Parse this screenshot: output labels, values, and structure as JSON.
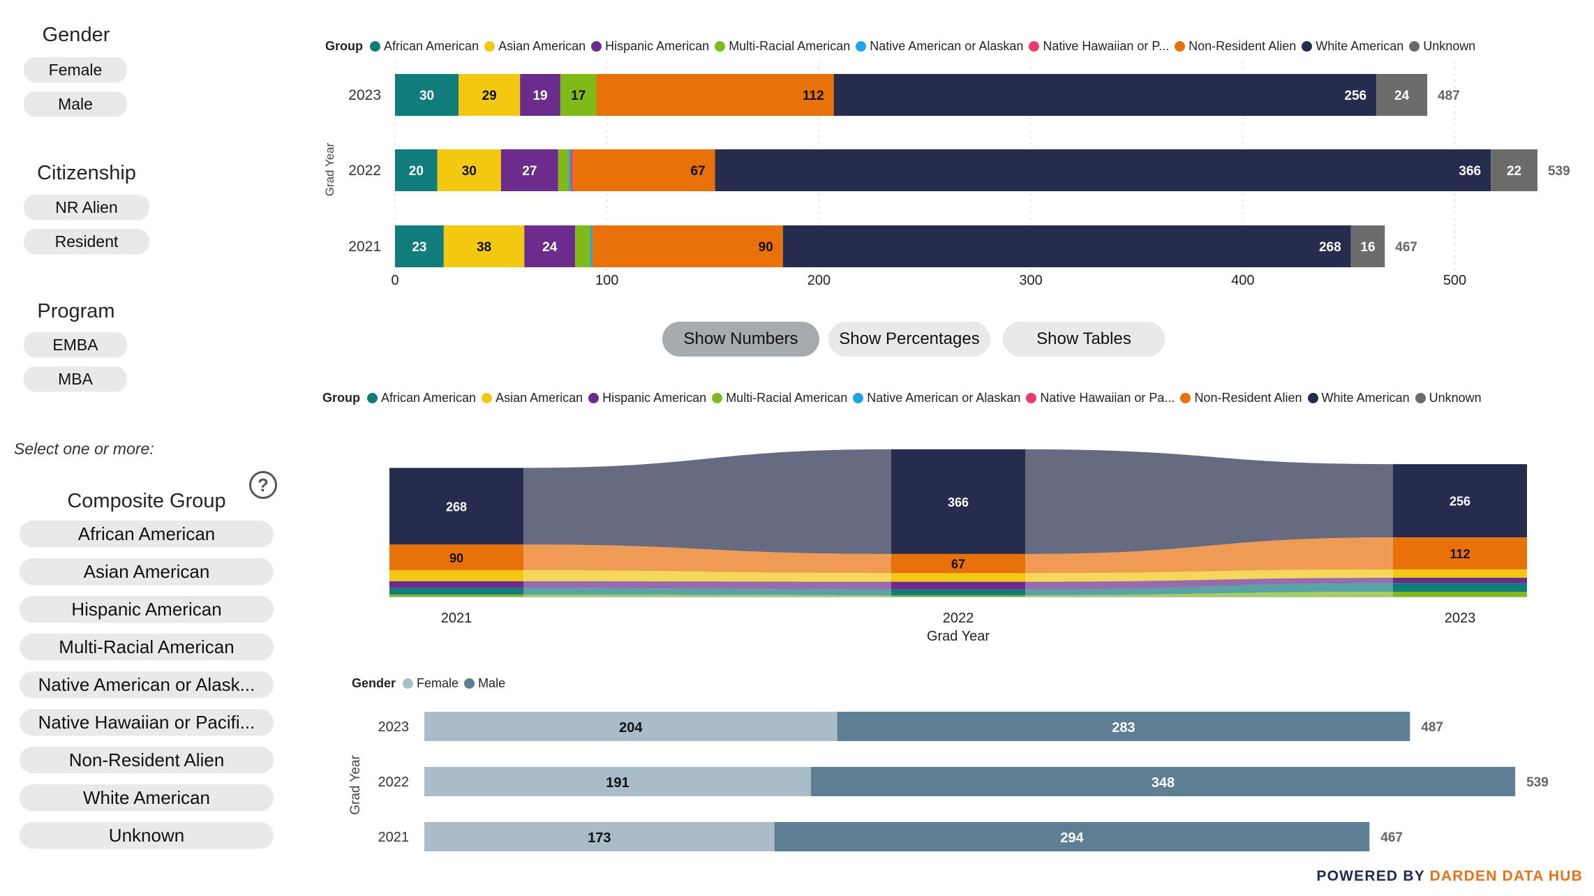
{
  "filters": {
    "gender": {
      "title": "Gender",
      "options": [
        "Female",
        "Male"
      ]
    },
    "citizenship": {
      "title": "Citizenship",
      "options": [
        "NR Alien",
        "Resident"
      ]
    },
    "program": {
      "title": "Program",
      "options": [
        "EMBA",
        "MBA"
      ]
    },
    "hint": "Select one or more:",
    "composite": {
      "title": "Composite Group",
      "options": [
        "African American",
        "Asian American",
        "Hispanic American",
        "Multi-Racial American",
        "Native American or Alask...",
        "Native Hawaiian or Pacifi...",
        "Non-Resident Alien",
        "White American",
        "Unknown"
      ]
    }
  },
  "buttons": {
    "show_numbers": "Show Numbers",
    "show_percentages": "Show Percentages",
    "show_tables": "Show Tables"
  },
  "legend_groups": {
    "title": "Group",
    "items": [
      {
        "label": "African American",
        "color": "#117c7c"
      },
      {
        "label": "Asian American",
        "color": "#f2c811"
      },
      {
        "label": "Hispanic American",
        "color": "#6b2c8c"
      },
      {
        "label": "Multi-Racial American",
        "color": "#7fba18"
      },
      {
        "label": "Native American or Alaskan",
        "color": "#1ea5e5"
      },
      {
        "label": "Native Hawaiian or P...",
        "color": "#ef3b6a"
      },
      {
        "label": "Non-Resident Alien",
        "color": "#e8710a"
      },
      {
        "label": "White American",
        "color": "#252c4d"
      },
      {
        "label": "Unknown",
        "color": "#6b6b6b"
      }
    ]
  },
  "legend_groups_2": {
    "title": "Group",
    "items": [
      {
        "label": "African American",
        "color": "#117c7c"
      },
      {
        "label": "Asian American",
        "color": "#f2c811"
      },
      {
        "label": "Hispanic American",
        "color": "#6b2c8c"
      },
      {
        "label": "Multi-Racial American",
        "color": "#7fba18"
      },
      {
        "label": "Native American or Alaskan",
        "color": "#1ea5e5"
      },
      {
        "label": "Native Hawaiian or Pa...",
        "color": "#ef3b6a"
      },
      {
        "label": "Non-Resident Alien",
        "color": "#e8710a"
      },
      {
        "label": "White American",
        "color": "#252c4d"
      },
      {
        "label": "Unknown",
        "color": "#6b6b6b"
      }
    ]
  },
  "legend_gender": {
    "title": "Gender",
    "items": [
      {
        "label": "Female",
        "color": "#a9bcc8"
      },
      {
        "label": "Male",
        "color": "#5e7f93"
      }
    ]
  },
  "footer": {
    "prefix": "POWERED BY ",
    "brand": "DARDEN DATA HUB"
  },
  "chart_data": [
    {
      "type": "bar",
      "stacked": true,
      "orientation": "horizontal",
      "ylabel": "Grad Year",
      "categories": [
        "2023",
        "2022",
        "2021"
      ],
      "x_ticks": [
        0,
        100,
        200,
        300,
        400,
        500
      ],
      "xlim": [
        0,
        540
      ],
      "series": [
        {
          "name": "African American",
          "color": "#117c7c",
          "values": [
            30,
            20,
            23
          ],
          "labels": [
            "30",
            "20",
            "23"
          ]
        },
        {
          "name": "Asian American",
          "color": "#f2c811",
          "values": [
            29,
            30,
            38
          ],
          "labels": [
            "29",
            "30",
            "38"
          ]
        },
        {
          "name": "Hispanic American",
          "color": "#6b2c8c",
          "values": [
            19,
            27,
            24
          ],
          "labels": [
            "19",
            "27",
            "24"
          ]
        },
        {
          "name": "Multi-Racial American",
          "color": "#7fba18",
          "values": [
            17,
            5,
            7
          ],
          "labels": [
            "17",
            "",
            ""
          ]
        },
        {
          "name": "Native American or Alaskan",
          "color": "#1ea5e5",
          "values": [
            0,
            1,
            1
          ],
          "labels": [
            "",
            "",
            ""
          ]
        },
        {
          "name": "Native Hawaiian or P...",
          "color": "#ef3b6a",
          "values": [
            0,
            1,
            0
          ],
          "labels": [
            "",
            "",
            ""
          ]
        },
        {
          "name": "Non-Resident Alien",
          "color": "#e8710a",
          "values": [
            112,
            67,
            90
          ],
          "labels": [
            "112",
            "67",
            "90"
          ]
        },
        {
          "name": "White American",
          "color": "#252c4d",
          "values": [
            256,
            366,
            268
          ],
          "labels": [
            "256",
            "366",
            "268"
          ]
        },
        {
          "name": "Unknown",
          "color": "#6b6b6b",
          "values": [
            24,
            22,
            16
          ],
          "labels": [
            "24",
            "22",
            "16"
          ]
        }
      ],
      "totals": [
        "487",
        "539",
        "467"
      ]
    },
    {
      "type": "area",
      "variant": "ribbon",
      "xlabel": "Grad Year",
      "categories": [
        "2021",
        "2022",
        "2023"
      ],
      "series": [
        {
          "name": "White American",
          "color": "#252c4d",
          "values": [
            268,
            366,
            256
          ],
          "labels": [
            "268",
            "366",
            "256"
          ]
        },
        {
          "name": "Non-Resident Alien",
          "color": "#e8710a",
          "values": [
            90,
            67,
            112
          ],
          "labels": [
            "90",
            "67",
            "112"
          ]
        },
        {
          "name": "Asian American",
          "color": "#f2c811",
          "values": [
            38,
            30,
            29
          ],
          "labels": [
            "",
            "",
            ""
          ]
        },
        {
          "name": "Hispanic American",
          "color": "#6b2c8c",
          "values": [
            24,
            27,
            19
          ],
          "labels": [
            "",
            "",
            ""
          ]
        },
        {
          "name": "African American",
          "color": "#117c7c",
          "values": [
            23,
            20,
            30
          ],
          "labels": [
            "",
            "",
            ""
          ]
        },
        {
          "name": "Multi-Racial American",
          "color": "#7fba18",
          "values": [
            7,
            5,
            17
          ],
          "labels": [
            "",
            "",
            ""
          ]
        }
      ]
    },
    {
      "type": "bar",
      "stacked": true,
      "orientation": "horizontal",
      "ylabel": "Grad Year",
      "categories": [
        "2023",
        "2022",
        "2021"
      ],
      "xlim": [
        0,
        539
      ],
      "series": [
        {
          "name": "Female",
          "color": "#a9bcc8",
          "values": [
            204,
            191,
            173
          ]
        },
        {
          "name": "Male",
          "color": "#5e7f93",
          "values": [
            283,
            348,
            294
          ]
        }
      ],
      "totals": [
        "487",
        "539",
        "467"
      ]
    }
  ]
}
